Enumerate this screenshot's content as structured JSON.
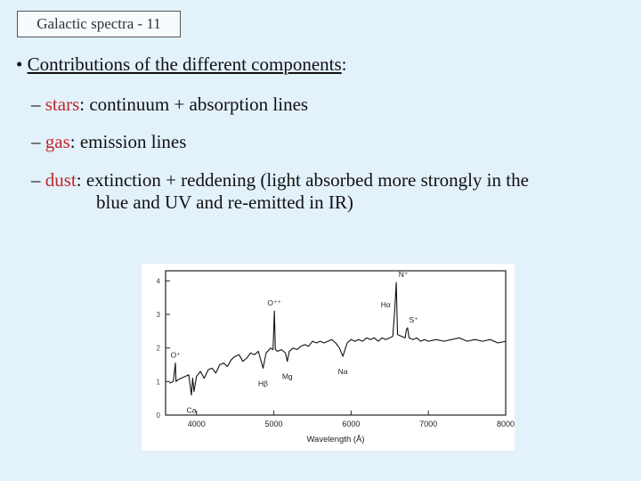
{
  "title": "Galactic spectra - 11",
  "bullet": {
    "mark": "•",
    "text": "Contributions of the different components",
    "colon": ":"
  },
  "items": [
    {
      "dash": "–",
      "term": "stars",
      "desc": ": continuum + absorption lines"
    },
    {
      "dash": "–",
      "term": "gas",
      "desc": ": emission lines"
    },
    {
      "dash": "–",
      "term": "dust",
      "desc": ": extinction + reddening (light absorbed more strongly in the",
      "desc2": "blue and UV and re-emitted in IR)"
    }
  ],
  "chart_data": {
    "type": "line",
    "xlabel": "Wavelength (Å)",
    "ylabel": "",
    "xlim": [
      3600,
      8000
    ],
    "ylim": [
      0,
      4.3
    ],
    "xticks": [
      4000,
      5000,
      6000,
      7000,
      8000
    ],
    "yticks": [
      0,
      1,
      2,
      3,
      4
    ],
    "grid": false,
    "series": [
      {
        "x": [
          3650,
          3700,
          3727,
          3735,
          3760,
          3800,
          3850,
          3900,
          3934,
          3950,
          3968,
          4000,
          4050,
          4100,
          4150,
          4200,
          4250,
          4300,
          4350,
          4400,
          4450,
          4500,
          4550,
          4600,
          4650,
          4700,
          4750,
          4800,
          4861,
          4900,
          4959,
          4990,
          5007,
          5020,
          5050,
          5100,
          5150,
          5175,
          5200,
          5250,
          5300,
          5350,
          5400,
          5450,
          5500,
          5550,
          5600,
          5650,
          5700,
          5750,
          5800,
          5850,
          5893,
          5950,
          6000,
          6050,
          6100,
          6150,
          6200,
          6250,
          6300,
          6350,
          6400,
          6450,
          6500,
          6540,
          6563,
          6584,
          6600,
          6650,
          6700,
          6716,
          6731,
          6750,
          6800,
          6850,
          6900,
          6950,
          7000,
          7100,
          7200,
          7300,
          7400,
          7500,
          7600,
          7700,
          7800,
          7900,
          8000
        ],
        "y": [
          0.95,
          1.0,
          1.55,
          1.0,
          1.05,
          1.1,
          1.15,
          1.2,
          0.6,
          1.1,
          0.7,
          1.15,
          1.3,
          1.1,
          1.35,
          1.4,
          1.25,
          1.5,
          1.55,
          1.45,
          1.65,
          1.75,
          1.8,
          1.6,
          1.7,
          1.85,
          1.8,
          1.9,
          1.4,
          1.85,
          2.0,
          1.95,
          3.1,
          1.95,
          1.9,
          1.95,
          1.85,
          1.6,
          1.9,
          2.0,
          1.95,
          2.05,
          2.1,
          2.05,
          2.2,
          2.15,
          2.2,
          2.15,
          2.2,
          2.25,
          2.15,
          2.0,
          1.75,
          2.15,
          2.25,
          2.2,
          2.25,
          2.2,
          2.3,
          2.25,
          2.3,
          2.2,
          2.3,
          2.25,
          2.3,
          2.35,
          3.05,
          3.95,
          2.4,
          2.35,
          2.3,
          2.55,
          2.6,
          2.3,
          2.25,
          2.3,
          2.2,
          2.25,
          2.2,
          2.25,
          2.2,
          2.25,
          2.3,
          2.2,
          2.25,
          2.2,
          2.25,
          2.15,
          2.2
        ]
      }
    ],
    "annotations": [
      {
        "text": "O⁺",
        "x": 3727,
        "y": 1.55
      },
      {
        "text": "Ca",
        "x": 3934,
        "y": 0.6
      },
      {
        "text": "O⁺⁺",
        "x": 5007,
        "y": 3.1
      },
      {
        "text": "Hβ",
        "x": 4861,
        "y": 1.4
      },
      {
        "text": "Mg",
        "x": 5175,
        "y": 1.6
      },
      {
        "text": "Na",
        "x": 5893,
        "y": 1.75
      },
      {
        "text": "Hα",
        "x": 6563,
        "y": 3.05
      },
      {
        "text": "N⁺",
        "x": 6584,
        "y": 3.95
      },
      {
        "text": "S⁺",
        "x": 6716,
        "y": 2.6
      }
    ]
  }
}
